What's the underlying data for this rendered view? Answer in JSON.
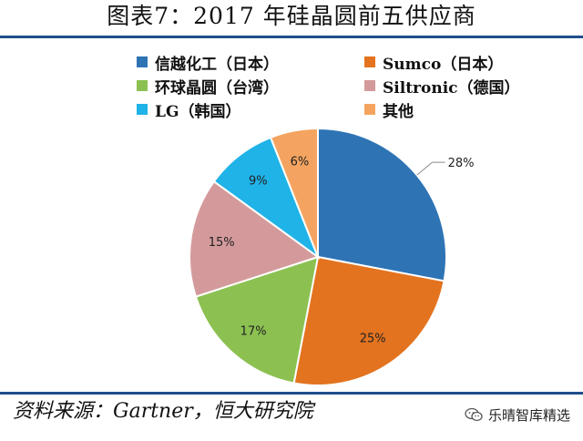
{
  "title": "图表7：2017 年硅晶圆前五供应商",
  "source": "资料来源：Gartner，恒大研究院",
  "watermark": {
    "text": "乐晴智库精选",
    "icon": "wechat-icon"
  },
  "colors": {
    "信越化工（日本）": "#2e74b5",
    "Sumco（日本）": "#e3731f",
    "环球晶圆（台湾）": "#8cc152",
    "Siltronic（德国）": "#d49a9b",
    "LG（韩国）": "#1fb3e8",
    "其他": "#f4a460"
  },
  "chart_data": {
    "type": "pie",
    "title": "",
    "categories": [
      "信越化工（日本）",
      "Sumco（日本）",
      "环球晶圆（台湾）",
      "Siltronic（德国）",
      "LG（韩国）",
      "其他"
    ],
    "values": [
      28,
      25,
      17,
      15,
      9,
      6
    ],
    "data_labels": [
      "28%",
      "25%",
      "17%",
      "15%",
      "9%",
      "6%"
    ],
    "unit": "%",
    "start_angle": "12 o'clock",
    "direction": "clockwise",
    "legend_placement": "top"
  }
}
